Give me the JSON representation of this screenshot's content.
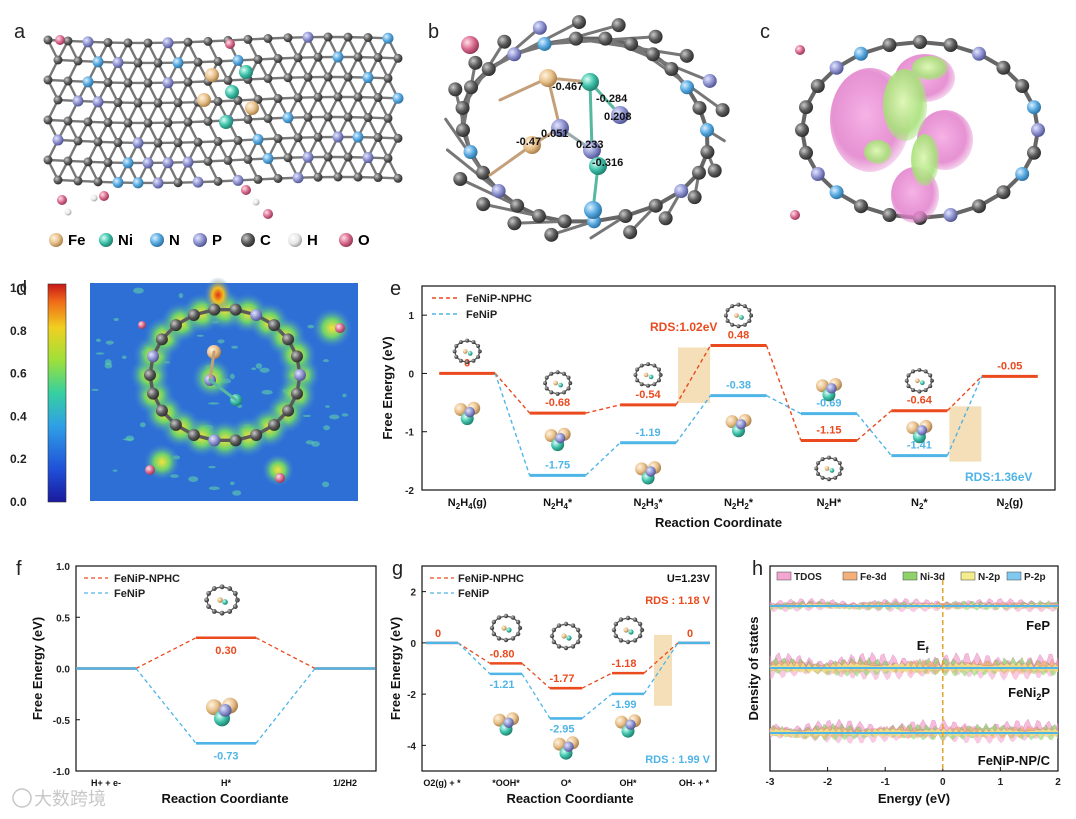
{
  "watermark": "大数跨境",
  "colors": {
    "red": "#ea4a1e",
    "blue": "#4fb4e6",
    "rds_box": "#f5dfb8",
    "fe": "#e8c08a",
    "ni": "#3cc0a8",
    "n": "#56a8e0",
    "p": "#8d92cf",
    "c": "#5b5b5b",
    "h": "#eeeeee",
    "o": "#d96a8d"
  },
  "panels": {
    "a": {
      "label": "a",
      "legend": [
        "Fe",
        "Ni",
        "N",
        "P",
        "C",
        "H",
        "O"
      ]
    },
    "b": {
      "label": "b",
      "charges": [
        "-0.467",
        "-0.284",
        "0.208",
        "-0.47",
        "0.051",
        "0.233",
        "-0.316"
      ]
    },
    "c": {
      "label": "c"
    },
    "d": {
      "label": "d",
      "colorbar_ticks": [
        "1.0",
        "0.8",
        "0.6",
        "0.4",
        "0.2",
        "0.0"
      ]
    },
    "e": {
      "label": "e"
    },
    "f": {
      "label": "f"
    },
    "g": {
      "label": "g"
    },
    "h": {
      "label": "h"
    }
  },
  "chart_data": [
    {
      "id": "e",
      "type": "line",
      "title": "",
      "xlabel": "Reaction Coordinate",
      "ylabel": "Free Energy (eV)",
      "ylim": [
        -2,
        1.5
      ],
      "yticks": [
        -2,
        -1,
        0,
        1
      ],
      "categories": [
        "N2H4(g)",
        "N2H4*",
        "N2H3*",
        "N2H2*",
        "N2H*",
        "N2*",
        "N2(g)"
      ],
      "series": [
        {
          "name": "FeNiP-NPHC",
          "values": [
            0,
            -0.68,
            -0.54,
            0.48,
            -1.15,
            -0.64,
            -0.05
          ],
          "labels": [
            "0",
            "-0.68",
            "-0.54",
            "0.48",
            "-1.15",
            "-0.64",
            "-0.05"
          ]
        },
        {
          "name": "FeNiP",
          "values": [
            null,
            -1.75,
            -1.19,
            -0.38,
            -0.69,
            -1.41,
            null
          ],
          "labels": [
            "",
            "-1.75",
            "-1.19",
            "-0.38",
            "-0.69",
            "-1.41",
            ""
          ]
        }
      ],
      "annotations": [
        "RDS:1.02eV",
        "RDS:1.36eV"
      ]
    },
    {
      "id": "f",
      "type": "line",
      "xlabel": "Reaction Coordiante",
      "ylabel": "Free Energy (eV)",
      "ylim": [
        -1.0,
        1.0
      ],
      "yticks": [
        "1.0",
        "0.5",
        "0.0",
        "-0.5",
        "-1.0"
      ],
      "categories": [
        "H+ + e-",
        "H*",
        "1/2H2"
      ],
      "series": [
        {
          "name": "FeNiP-NPHC",
          "values": [
            0,
            0.3,
            0
          ],
          "labels": [
            "",
            "0.30",
            ""
          ]
        },
        {
          "name": "FeNiP",
          "values": [
            0,
            -0.73,
            0
          ],
          "labels": [
            "",
            "-0.73",
            ""
          ]
        }
      ]
    },
    {
      "id": "g",
      "type": "line",
      "xlabel": "Reaction Coordiante",
      "ylabel": "Free Energy (eV)",
      "ylim": [
        -5,
        3
      ],
      "yticks": [
        2,
        0,
        -2,
        -4
      ],
      "categories": [
        "O2(g) + *",
        "*OOH*",
        "O*",
        "OH*",
        "OH- + *"
      ],
      "series": [
        {
          "name": "FeNiP-NPHC",
          "values": [
            0,
            -0.8,
            -1.77,
            -1.18,
            0
          ],
          "labels": [
            "0",
            "-0.80",
            "-1.77",
            "-1.18",
            "0"
          ]
        },
        {
          "name": "FeNiP",
          "values": [
            0,
            -1.21,
            -2.95,
            -1.99,
            0
          ],
          "labels": [
            "",
            "-1.21",
            "-2.95",
            "-1.99",
            ""
          ]
        }
      ],
      "annotations": [
        "U=1.23V",
        "RDS : 1.18 V",
        "RDS : 1.99 V"
      ]
    },
    {
      "id": "h",
      "type": "area",
      "xlabel": "Energy (eV)",
      "ylabel": "Density of states",
      "xlim": [
        -3,
        2
      ],
      "xticks": [
        -3,
        -2,
        -1,
        0,
        1,
        2
      ],
      "legend": [
        "TDOS",
        "Fe-3d",
        "Ni-3d",
        "N-2p",
        "P-2p"
      ],
      "traces": [
        "FeP",
        "FeNi2P",
        "FeNiP-NP/C"
      ],
      "fermi_label": "Ef"
    }
  ]
}
